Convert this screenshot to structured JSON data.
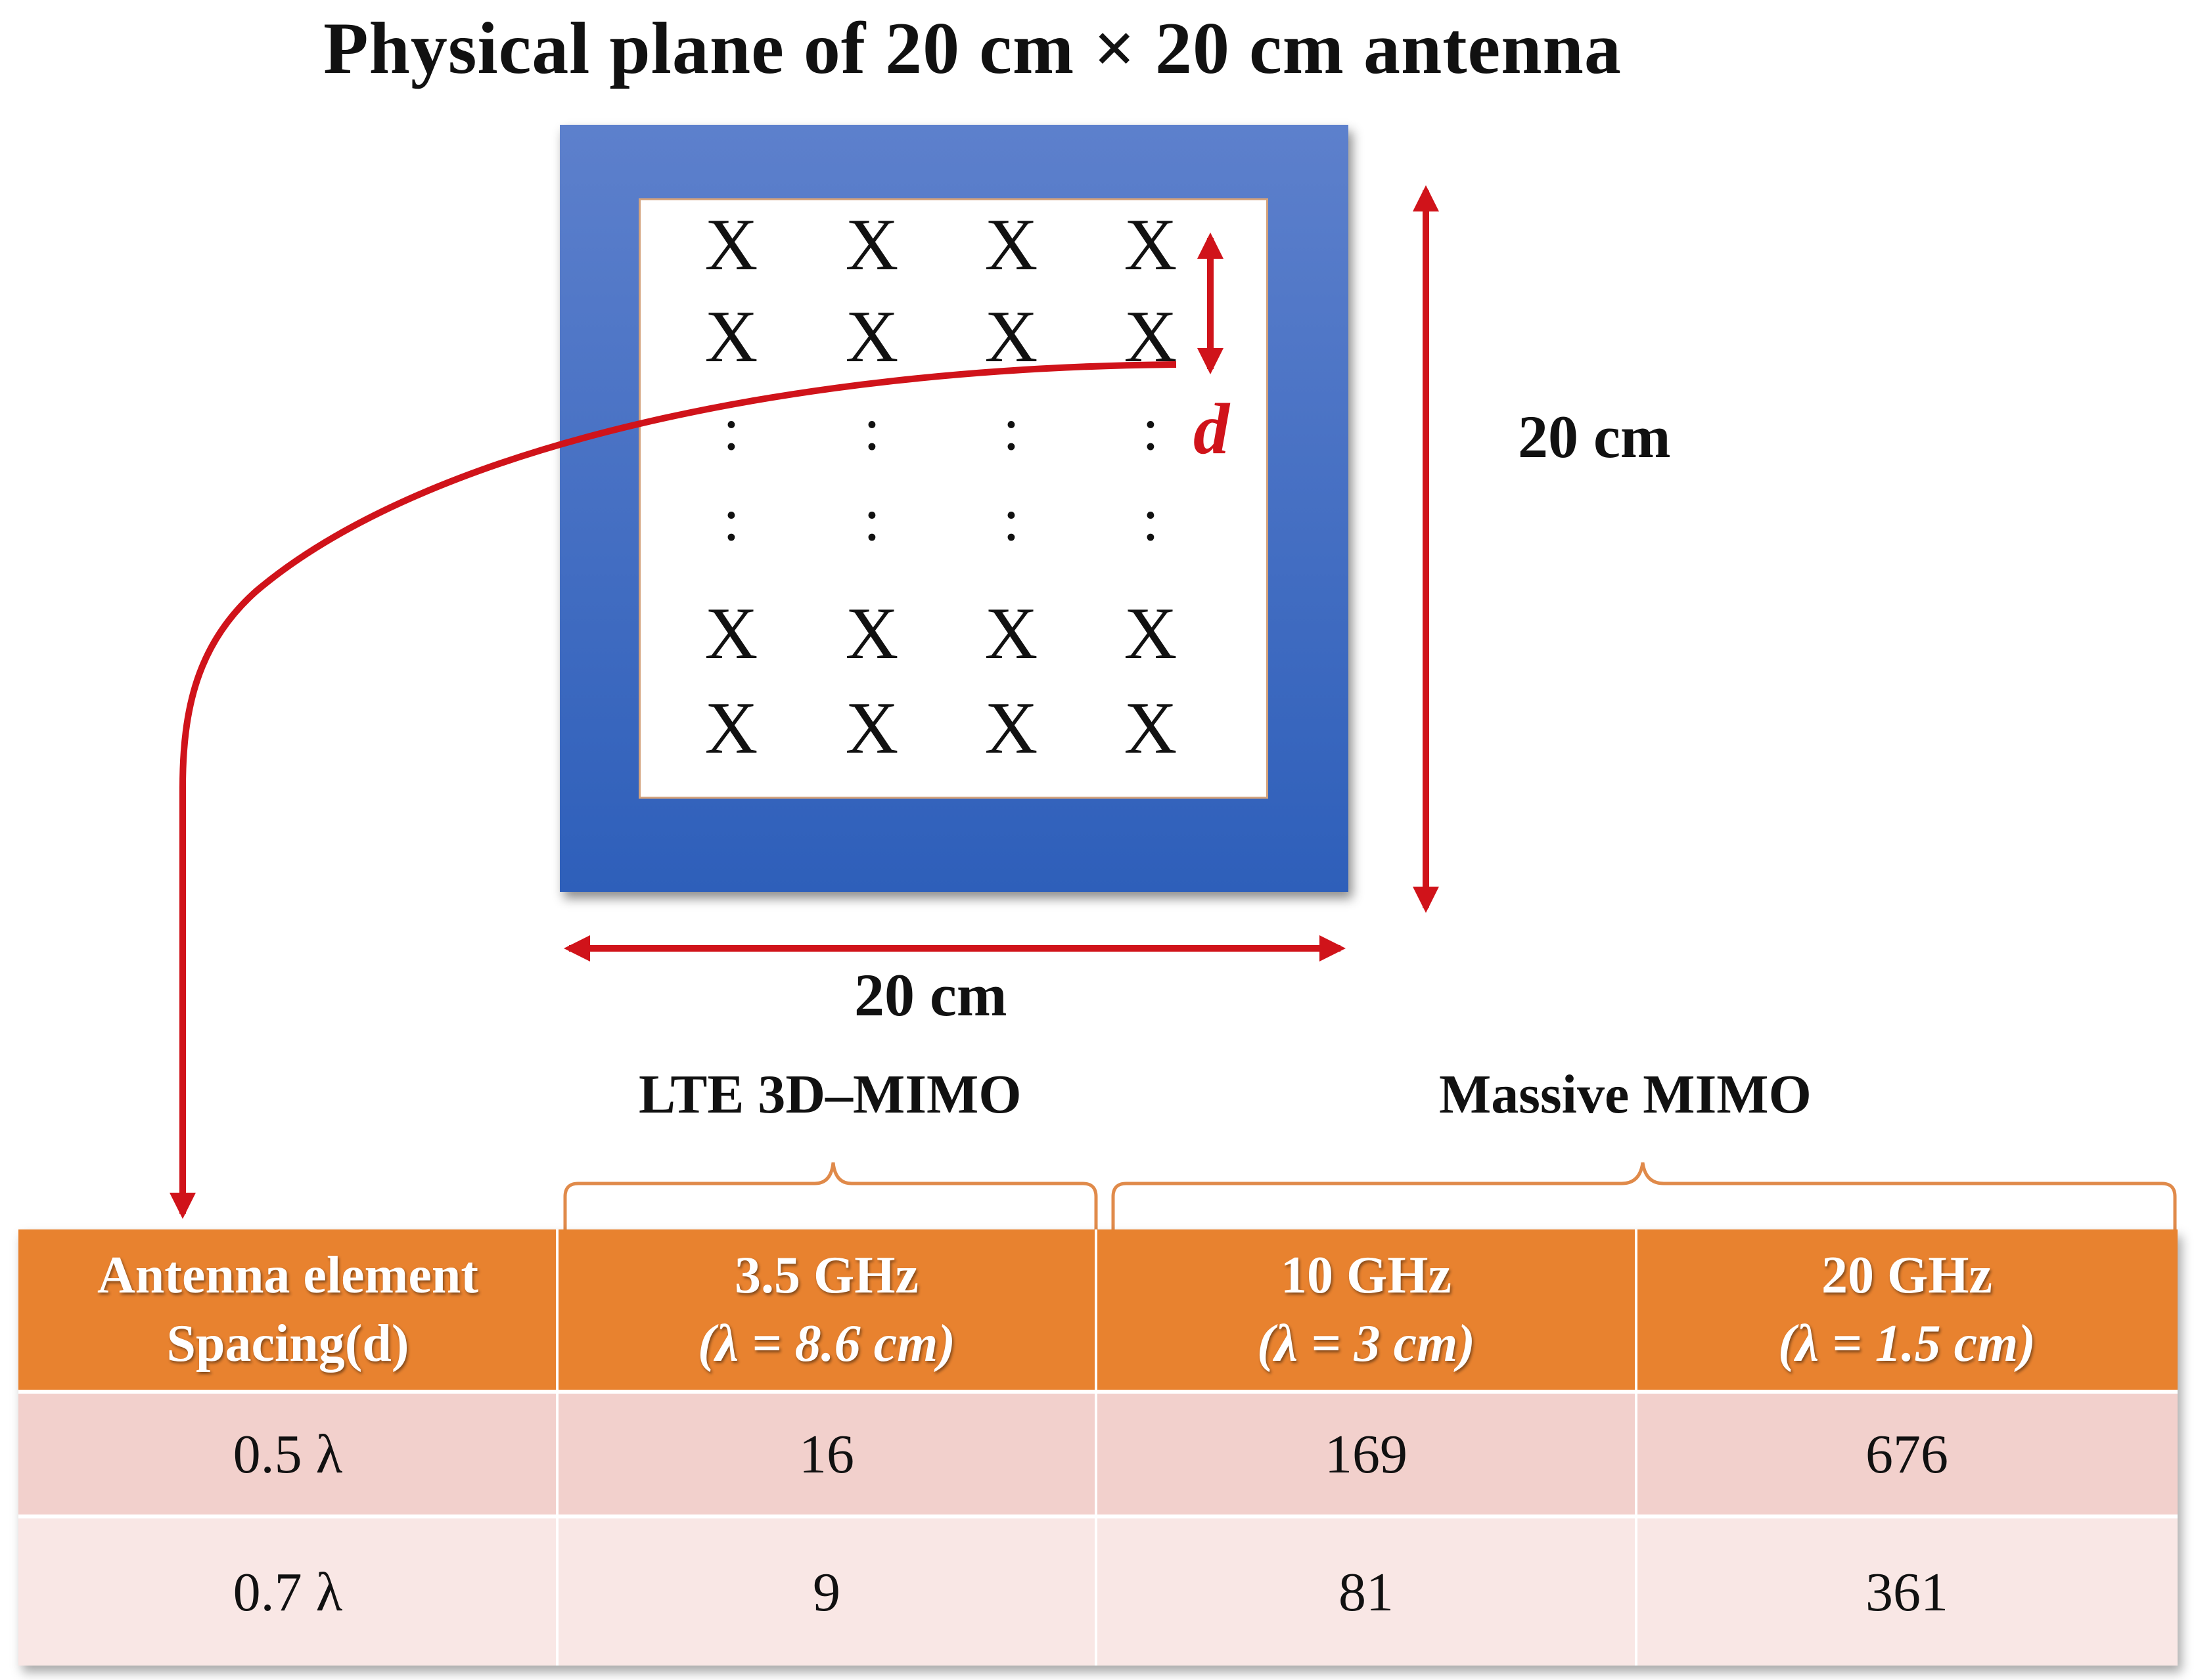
{
  "title": "Physical plane of 20 cm × 20 cm antenna",
  "antenna": {
    "element_symbol": "X",
    "ellipsis_symbol": ":",
    "spacing_label": "d",
    "width_label": "20 cm",
    "height_label": "20 cm"
  },
  "groups": {
    "lte": "LTE 3D–MIMO",
    "massive": "Massive MIMO"
  },
  "colors": {
    "board_top": "#5d80cc",
    "board_bottom": "#2e5fba",
    "arrow": "#d0131a",
    "header": "#e8822f",
    "brace": "#e08a4a",
    "row_odd": "#f2d0cc",
    "row_even": "#f9e7e5"
  },
  "table": {
    "header": {
      "col0_line1": "Antenna element",
      "col0_line2": "Spacing(d)",
      "col1_line1": "3.5 GHz",
      "col1_line2": "(λ = 8.6 cm)",
      "col2_line1": "10 GHz",
      "col2_line2": "(λ = 3 cm)",
      "col3_line1": "20 GHz",
      "col3_line2": "(λ = 1.5 cm)"
    },
    "rows": [
      {
        "spacing": "0.5 λ",
        "v1": "16",
        "v2": "169",
        "v3": "676"
      },
      {
        "spacing": "0.7 λ",
        "v1": "9",
        "v2": "81",
        "v3": "361"
      }
    ]
  }
}
